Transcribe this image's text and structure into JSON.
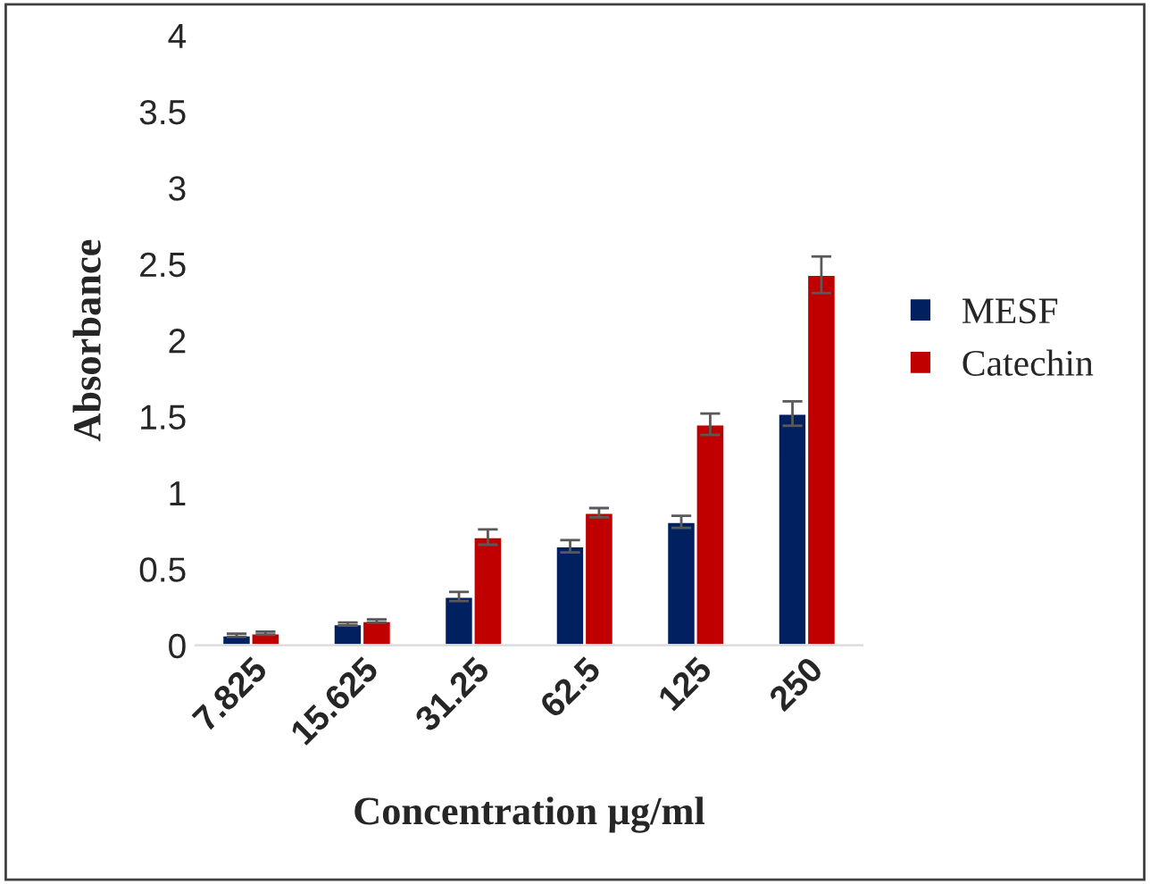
{
  "chart_data": {
    "type": "bar",
    "xlabel": "Concentration µg/ml",
    "ylabel": "Absorbance",
    "categories": [
      "7.825",
      "15.625",
      "31.25",
      "62.5",
      "125",
      "250"
    ],
    "series": [
      {
        "name": "MESF",
        "color": "#002060",
        "values": [
          0.066,
          0.14,
          0.32,
          0.65,
          0.81,
          1.52
        ],
        "errors": [
          0.01,
          0.01,
          0.03,
          0.04,
          0.04,
          0.08
        ]
      },
      {
        "name": "Catechin",
        "color": "#c00000",
        "values": [
          0.08,
          0.16,
          0.71,
          0.87,
          1.45,
          2.43
        ],
        "errors": [
          0.01,
          0.01,
          0.05,
          0.03,
          0.07,
          0.12
        ]
      }
    ],
    "ylim": [
      0,
      4
    ],
    "yticks": [
      0,
      0.5,
      1,
      1.5,
      2,
      2.5,
      3,
      3.5,
      4
    ],
    "grid": false,
    "legend": "right"
  }
}
